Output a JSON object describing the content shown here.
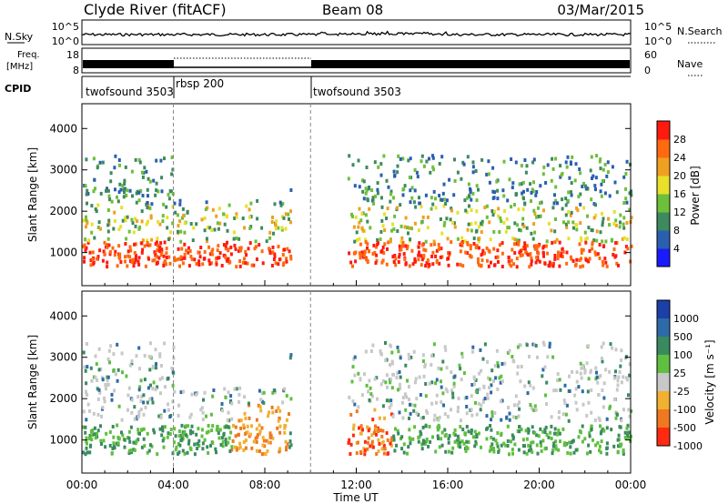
{
  "header": {
    "station": "Clyde River (fitACF)",
    "beam": "Beam 08",
    "date": "03/Mar/2015"
  },
  "noise_panel": {
    "left_label": "N.Sky",
    "right_label": "N.Search",
    "left_ticks": [
      "10^5",
      "10^0"
    ],
    "right_ticks": [
      "10^5",
      "10^0"
    ]
  },
  "freq_panel": {
    "left_label_line1": "Freq.",
    "left_label_line2": "[MHz]",
    "right_label": "Nave",
    "left_ticks": [
      "18",
      "8"
    ],
    "right_ticks": [
      "60",
      "0"
    ]
  },
  "cpid": {
    "label": "CPID",
    "segments": [
      {
        "name": "twofsound 3503",
        "start_hour": 0,
        "end_hour": 4
      },
      {
        "name": "rbsp 200",
        "start_hour": 4,
        "end_hour": 10
      },
      {
        "name": "twofsound 3503",
        "start_hour": 10,
        "end_hour": 24
      }
    ]
  },
  "chart_data": [
    {
      "type": "heatmap",
      "name": "power",
      "ylabel": "Slant Range [km]",
      "y_ticks": [
        1000,
        2000,
        3000,
        4000
      ],
      "ylim": [
        200,
        4600
      ],
      "xlim": [
        0,
        24
      ],
      "colorbar": {
        "label": "Power [dB]",
        "ticks": [
          "4",
          "8",
          "12",
          "16",
          "20",
          "24",
          "28"
        ],
        "colors": [
          "#1a1aff",
          "#2a5fb0",
          "#3d8a5e",
          "#6ebf3a",
          "#e8e02a",
          "#f0a020",
          "#ff6a10",
          "#ff1a10"
        ]
      }
    },
    {
      "type": "heatmap",
      "name": "velocity",
      "ylabel": "Slant Range [km]",
      "y_ticks": [
        1000,
        2000,
        3000,
        4000
      ],
      "ylim": [
        200,
        4600
      ],
      "xlim": [
        0,
        24
      ],
      "colorbar": {
        "label": "Velocity [m s⁻¹]",
        "ticks": [
          "1000",
          "500",
          "100",
          "25",
          "-25",
          "-100",
          "-500",
          "-1000"
        ],
        "colors": [
          "#1c3fa8",
          "#2e6aa8",
          "#3a8a60",
          "#5fbf40",
          "#c8c8c8",
          "#f0b030",
          "#f07820",
          "#ff2a10"
        ]
      }
    }
  ],
  "x_axis": {
    "ticks": [
      "00:00",
      "04:00",
      "08:00",
      "12:00",
      "16:00",
      "20:00",
      "00:00"
    ],
    "label": "Time UT"
  }
}
